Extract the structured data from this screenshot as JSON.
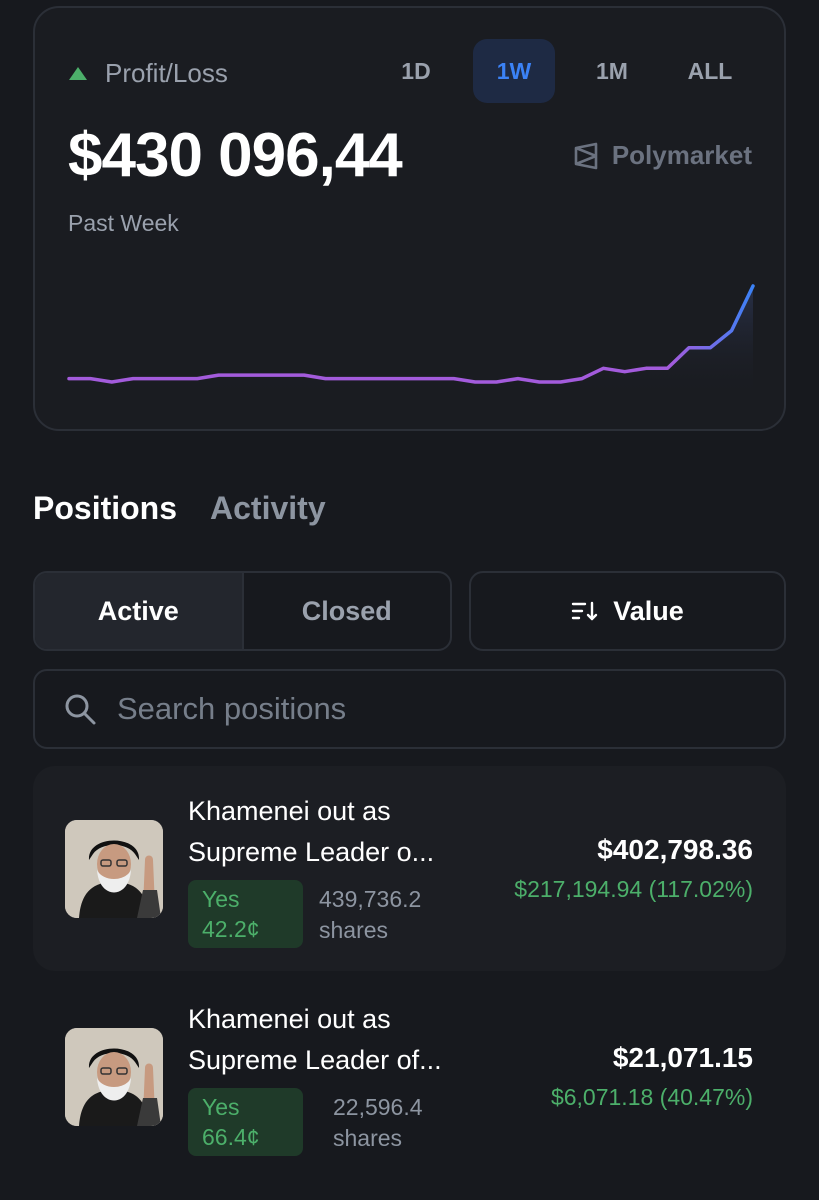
{
  "profit_loss": {
    "label": "Profit/Loss",
    "amount": "$430 096,44",
    "period": "Past Week",
    "brand": "Polymarket",
    "ranges": [
      "1D",
      "1W",
      "1M",
      "ALL"
    ],
    "active_range": "1W"
  },
  "chart_data": {
    "type": "line",
    "title": "",
    "xlabel": "",
    "ylabel": "",
    "values": [
      1,
      1,
      0,
      1,
      1,
      1,
      1,
      2,
      2,
      2,
      2,
      2,
      1,
      1,
      1,
      1,
      1,
      1,
      1,
      0,
      0,
      1,
      0,
      0,
      1,
      4,
      3,
      4,
      4,
      10,
      10,
      15,
      28
    ],
    "colors": {
      "start": "#a35bdc",
      "end": "#3b82f6"
    }
  },
  "tabs": [
    "Positions",
    "Activity"
  ],
  "filters": {
    "active": "Active",
    "closed": "Closed",
    "sort": "Value"
  },
  "search": {
    "placeholder": "Search positions"
  },
  "positions": [
    {
      "title_line1": "Khamenei out as",
      "title_line2": "Supreme Leader o...",
      "outcome": "Yes",
      "price": "42.2¢",
      "shares_count": "439,736.2",
      "shares_label": "shares",
      "value": "$402,798.36",
      "pnl": "$217,194.94 (117.02%)"
    },
    {
      "title_line1": "Khamenei out as",
      "title_line2": "Supreme Leader of...",
      "outcome": "Yes",
      "price": "66.4¢",
      "shares_count": "22,596.4",
      "shares_label": "shares",
      "value": "$21,071.15",
      "pnl": "$6,071.18 (40.47%)"
    }
  ]
}
